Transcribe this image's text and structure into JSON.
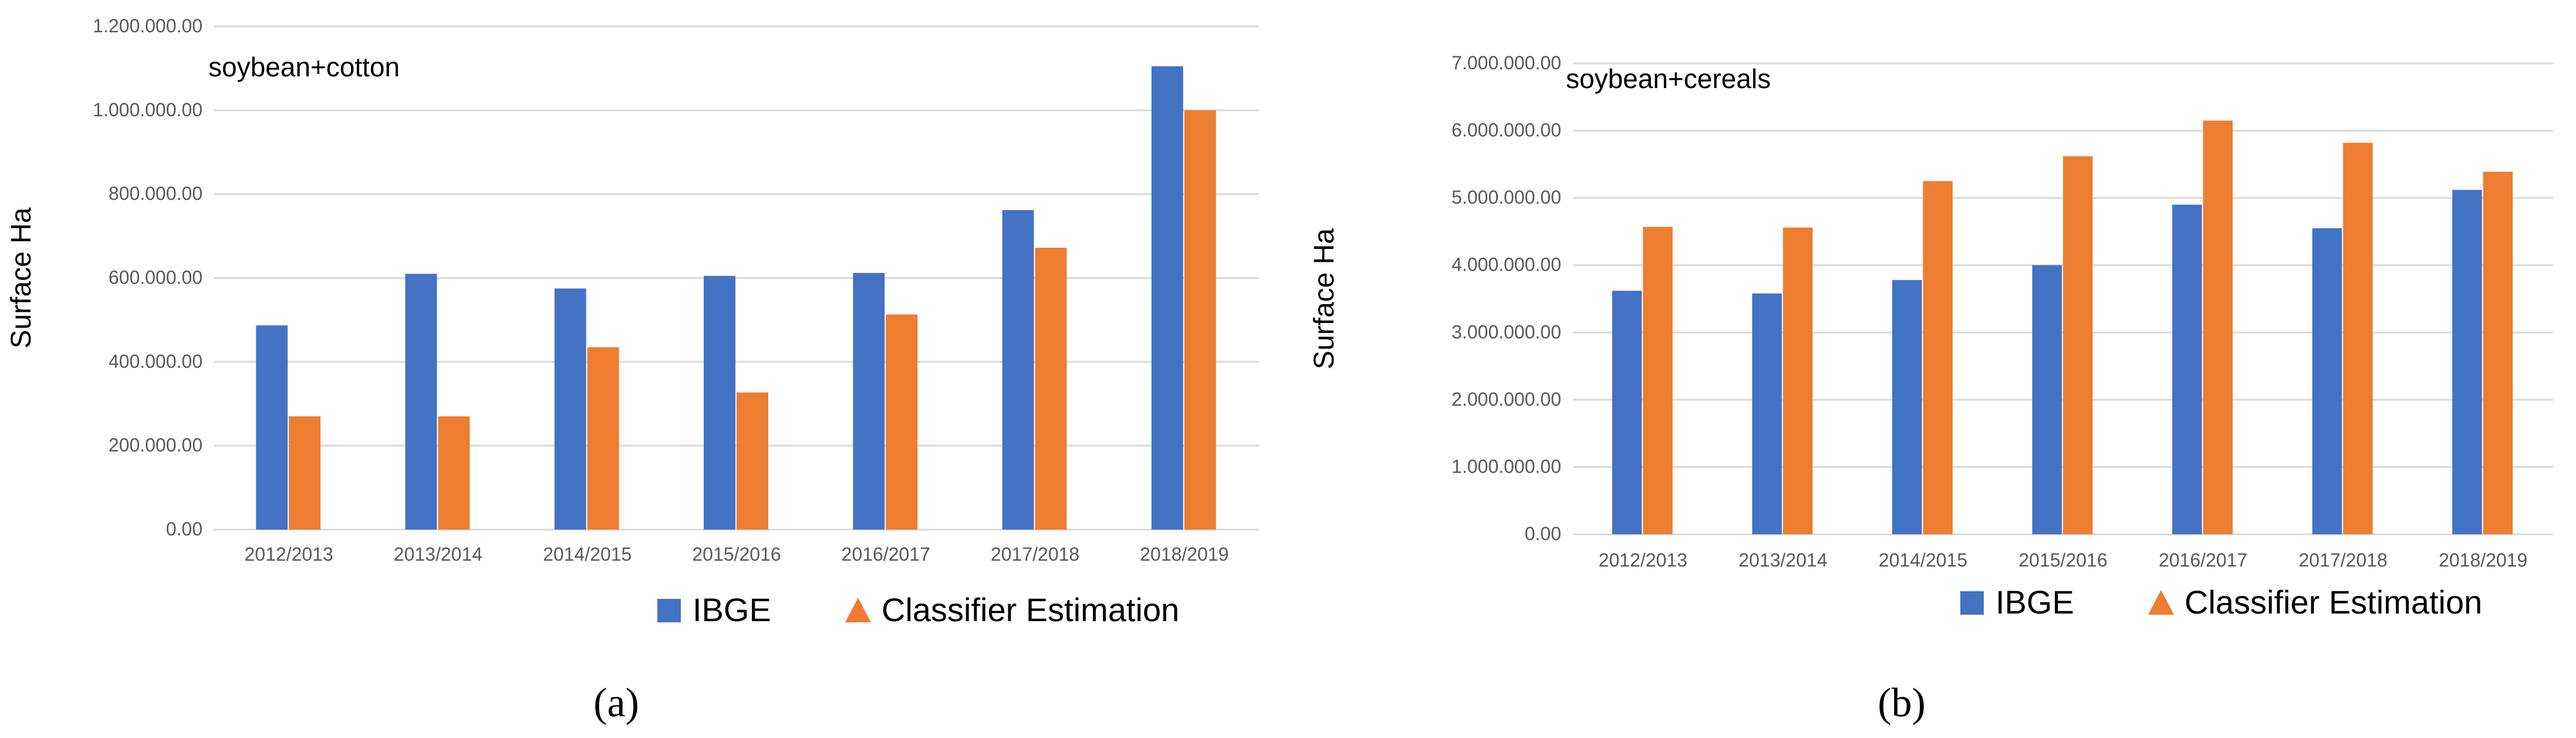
{
  "colors": {
    "ibge": "#4472C4",
    "classifier": "#ED7D31",
    "grid": "#D9D9D9",
    "axis_text": "#595959",
    "text": "#000000"
  },
  "legend": {
    "ibge": "IBGE",
    "classifier": "Classifier Estimation"
  },
  "chart_data": [
    {
      "type": "bar",
      "annotation": "soybean+cotton",
      "caption": "(a)",
      "ylabel": "Surface Ha",
      "xlabel": "",
      "ylim": [
        0,
        1200000
      ],
      "yticks": [
        0,
        200000,
        400000,
        600000,
        800000,
        1000000,
        1200000
      ],
      "ytick_labels": [
        "0.00",
        "200.000.00",
        "400.000.00",
        "600.000.00",
        "800.000.00",
        "1.000.000.00",
        "1.200.000.00"
      ],
      "categories": [
        "2012/2013",
        "2013/2014",
        "2014/2015",
        "2015/2016",
        "2016/2017",
        "2017/2018",
        "2018/2019"
      ],
      "series": [
        {
          "name": "IBGE",
          "values": [
            487000,
            610000,
            575000,
            605000,
            612000,
            762000,
            1105000
          ]
        },
        {
          "name": "Classifier Estimation",
          "values": [
            270000,
            270000,
            435000,
            327000,
            513000,
            672000,
            1000000
          ]
        }
      ],
      "grid": true,
      "legend_position": "bottom-right"
    },
    {
      "type": "bar",
      "annotation": "soybean+cereals",
      "caption": "(b)",
      "ylabel": "Surface Ha",
      "xlabel": "",
      "ylim": [
        0,
        7000000
      ],
      "yticks": [
        0,
        1000000,
        2000000,
        3000000,
        4000000,
        5000000,
        6000000,
        7000000
      ],
      "ytick_labels": [
        "0.00",
        "1.000.000.00",
        "2.000.000.00",
        "3.000.000.00",
        "4.000.000.00",
        "5.000.000.00",
        "6.000.000.00",
        "7.000.000.00"
      ],
      "categories": [
        "2012/2013",
        "2013/2014",
        "2014/2015",
        "2015/2016",
        "2016/2017",
        "2017/2018",
        "2018/2019"
      ],
      "series": [
        {
          "name": "IBGE",
          "values": [
            3620000,
            3580000,
            3780000,
            4000000,
            4900000,
            4550000,
            5120000
          ]
        },
        {
          "name": "Classifier Estimation",
          "values": [
            4570000,
            4560000,
            5250000,
            5620000,
            6150000,
            5820000,
            5390000
          ]
        }
      ],
      "grid": true,
      "legend_position": "bottom-right"
    }
  ]
}
